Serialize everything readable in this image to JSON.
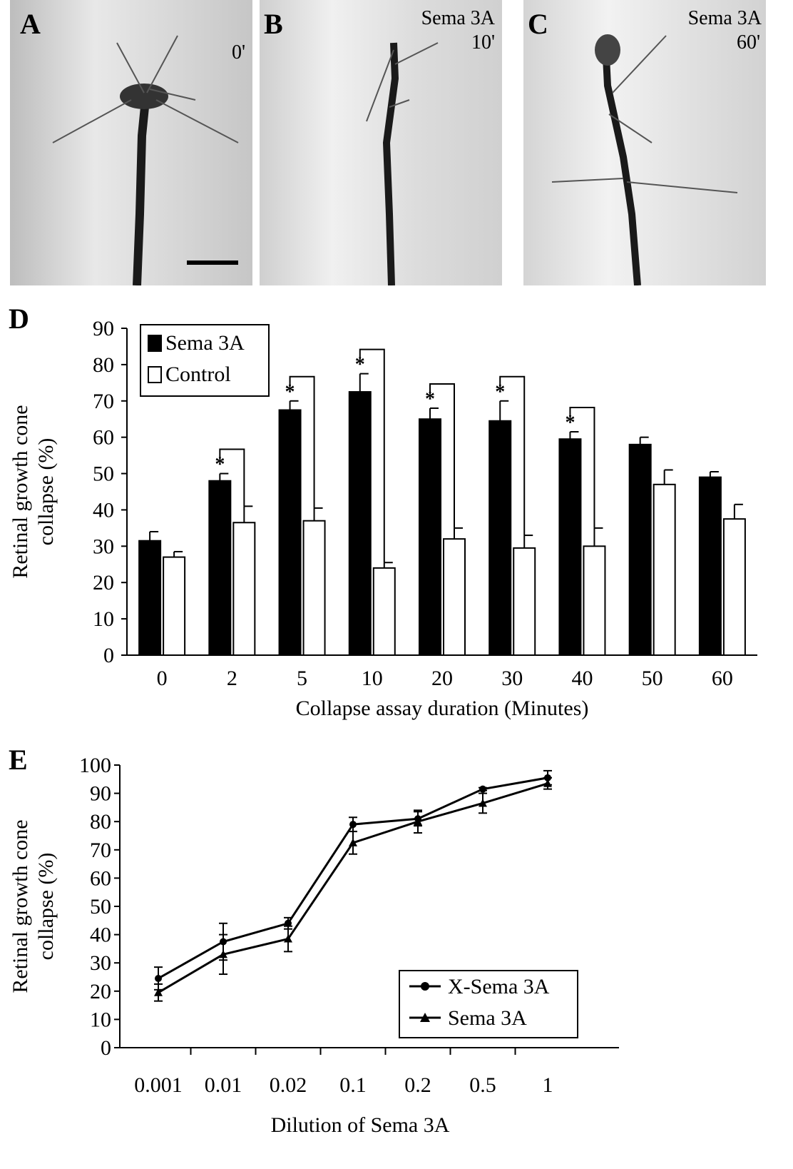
{
  "micrographs": [
    {
      "letter": "A",
      "agent": "",
      "time": "0'"
    },
    {
      "letter": "B",
      "agent": "Sema 3A",
      "time": "10'"
    },
    {
      "letter": "C",
      "agent": "Sema 3A",
      "time": "60'"
    }
  ],
  "chart_data": [
    {
      "panel": "D",
      "type": "bar",
      "categories": [
        "0",
        "2",
        "5",
        "10",
        "20",
        "30",
        "40",
        "50",
        "60"
      ],
      "series": [
        {
          "name": "Sema 3A",
          "color": "#000000",
          "values": [
            31.5,
            48,
            67.5,
            72.5,
            65,
            64.5,
            59.5,
            58,
            49
          ],
          "errors": [
            2.5,
            2,
            2.5,
            5,
            3,
            5.5,
            2,
            2,
            1.5
          ]
        },
        {
          "name": "Control",
          "color": "#ffffff",
          "values": [
            27,
            36.5,
            37,
            24,
            32,
            29.5,
            30,
            47,
            37.5
          ],
          "errors": [
            1.5,
            4.5,
            3.5,
            1.5,
            3,
            3.5,
            5,
            4,
            4
          ]
        }
      ],
      "significant": [
        false,
        true,
        true,
        true,
        true,
        true,
        true,
        false,
        false
      ],
      "significance_marker": "*",
      "xlabel": "Collapse assay duration (Minutes)",
      "ylabel": "Retinal growth cone collapse (%)",
      "ylim": [
        0,
        90
      ],
      "yticks": [
        0,
        10,
        20,
        30,
        40,
        50,
        60,
        70,
        80,
        90
      ],
      "legend": "top-left"
    },
    {
      "panel": "E",
      "type": "line",
      "x": [
        "0.001",
        "0.01",
        "0.02",
        "0.1",
        "0.2",
        "0.5",
        "1"
      ],
      "series": [
        {
          "name": "X-Sema 3A",
          "marker": "circle",
          "values": [
            24.5,
            37.5,
            44,
            79,
            81,
            91.5,
            95.5
          ],
          "errors": [
            4,
            6.5,
            2,
            2.5,
            2.5,
            0.5,
            2.5
          ]
        },
        {
          "name": "Sema 3A",
          "marker": "triangle",
          "values": [
            19.5,
            33,
            38.5,
            72.5,
            80,
            86.5,
            93.5
          ],
          "errors": [
            3,
            7,
            4.5,
            4,
            4,
            3.5,
            2
          ]
        }
      ],
      "xlabel": "Dilution of Sema 3A",
      "ylabel": "Retinal growth cone collapse (%)",
      "ylim": [
        0,
        100
      ],
      "yticks": [
        0,
        10,
        20,
        30,
        40,
        50,
        60,
        70,
        80,
        90,
        100
      ],
      "legend": "bottom-right"
    }
  ]
}
